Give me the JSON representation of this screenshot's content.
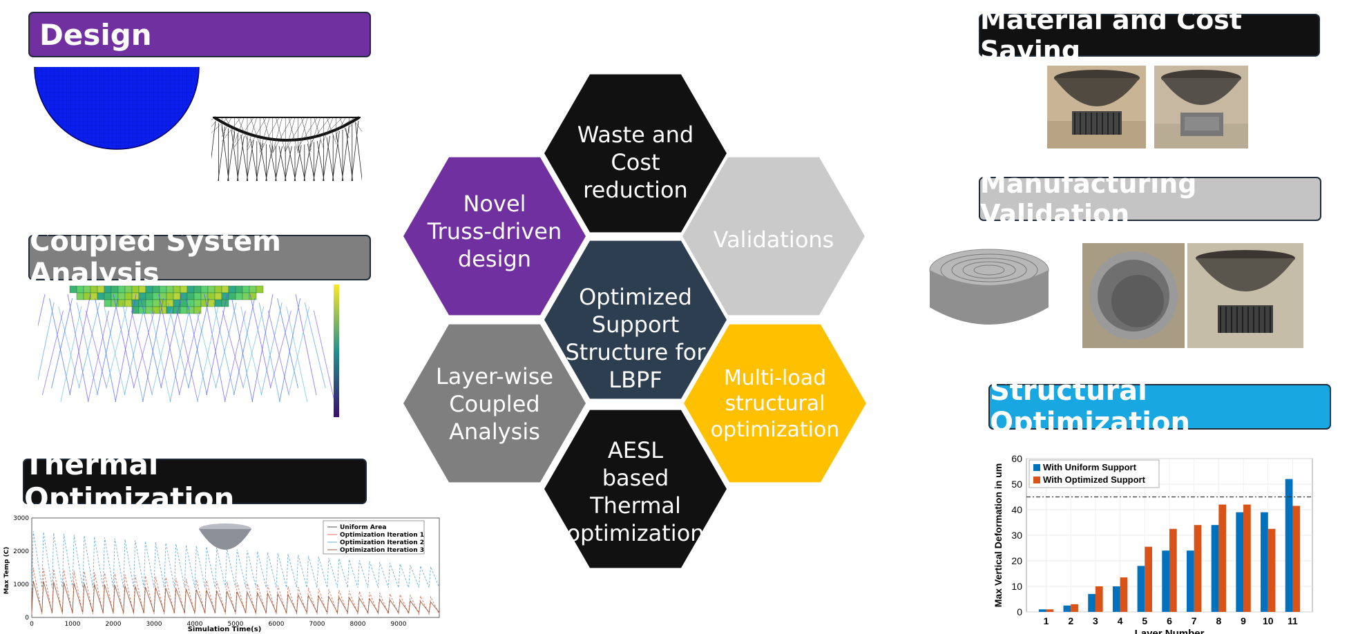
{
  "colors": {
    "purple": "#7030a0",
    "black": "#111111",
    "grey_light": "#cacaca",
    "grey_dark": "#7f7f7f",
    "navy": "#2c3e50",
    "gold": "#ffc000",
    "cyan": "#18a7e0",
    "blue_bar": "#0072bd",
    "orange_bar": "#d95319"
  },
  "labels": {
    "design": "Design",
    "coupled": "Coupled System Analysis",
    "thermal": "Thermal Optimization",
    "material": "Material and Cost Saving",
    "manufacturing": "Manufacturing Validation",
    "structural": "Structural Optimization"
  },
  "hexagons": {
    "top": "Waste and\nCost\nreduction",
    "upper_left": "Novel\nTruss-driven\ndesign",
    "upper_right": "Validations",
    "center": "Optimized\nSupport\nStructure for\nLBPF",
    "lower_left": "Layer-wise\nCoupled\nAnalysis",
    "lower_right": "Multi-load\nstructural\noptimization",
    "bottom": "AESL\nbased\nThermal\noptimization"
  },
  "thermal_chart": {
    "ylabel": "Max Temp (C)",
    "xlabel": "Simulation Time(s)",
    "yticks": [
      "0",
      "1000",
      "2000",
      "3000"
    ],
    "xticks": [
      "0",
      "1000",
      "2000",
      "3000",
      "4000",
      "5000",
      "6000",
      "7000",
      "8000",
      "9000"
    ],
    "legend": [
      "Uniform Area",
      "Optimization Iteration 1",
      "Optimization Iteration 2",
      "Optimization Iteration 3"
    ]
  },
  "chart_data": {
    "type": "bar",
    "xlabel": "Layer Number",
    "ylabel": "Max Vertical Deformation in um",
    "categories": [
      "1",
      "2",
      "3",
      "4",
      "5",
      "6",
      "7",
      "8",
      "9",
      "10",
      "11"
    ],
    "ylim": [
      0,
      60
    ],
    "yticks": [
      0,
      10,
      20,
      30,
      40,
      50,
      60
    ],
    "threshold": 45,
    "legend_position": "top-left",
    "series": [
      {
        "name": "With Uniform Support",
        "values": [
          1,
          2.5,
          7,
          10,
          18,
          24,
          24,
          34,
          39,
          39,
          52
        ]
      },
      {
        "name": "With Optimized Support",
        "values": [
          1,
          3,
          10,
          13.5,
          25.5,
          32.5,
          34,
          42,
          42,
          32.5,
          41.5
        ]
      }
    ]
  }
}
